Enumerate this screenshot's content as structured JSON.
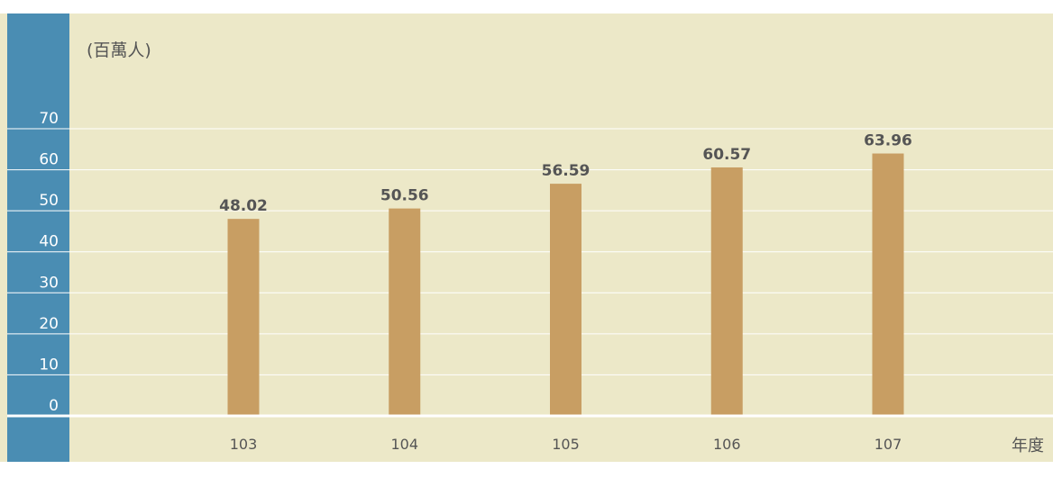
{
  "chart_data": {
    "type": "bar",
    "unit_label": "(百萬人)",
    "xlabel": "年度",
    "categories": [
      "103",
      "104",
      "105",
      "106",
      "107"
    ],
    "values": [
      48.02,
      50.56,
      56.59,
      60.57,
      63.96
    ],
    "value_labels": [
      "48.02",
      "50.56",
      "56.59",
      "60.57",
      "63.96"
    ],
    "yticks": [
      "0",
      "10",
      "20",
      "30",
      "40",
      "50",
      "60",
      "70"
    ],
    "ylim": [
      0,
      70
    ],
    "grid": true,
    "colors": {
      "bar": "#c89e63",
      "plot_background": "#ece8c8",
      "axis_band": "#4a8db3",
      "grid": "#ffffff",
      "value_label": "#555555",
      "text": "#555555"
    }
  }
}
